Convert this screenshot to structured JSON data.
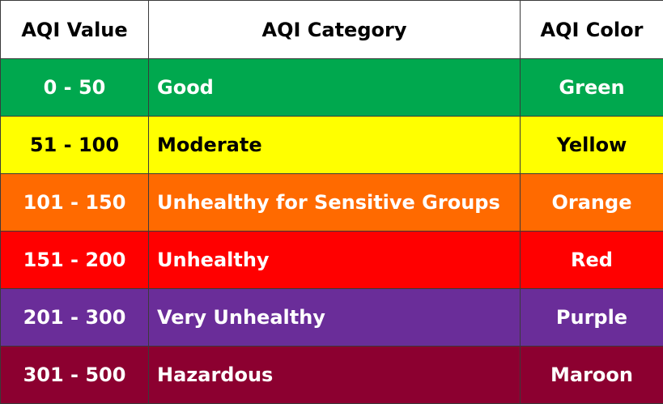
{
  "header": {
    "value": "AQI Value",
    "category": "AQI Category",
    "color": "AQI Color"
  },
  "rows": [
    {
      "value": "0 - 50",
      "category": "Good",
      "color": "Green",
      "bg": "#00a84e",
      "fg": "#ffffff"
    },
    {
      "value": "51 - 100",
      "category": "Moderate",
      "color": "Yellow",
      "bg": "#ffff00",
      "fg": "#000000"
    },
    {
      "value": "101 - 150",
      "category": "Unhealthy for Sensitive Groups",
      "color": "Orange",
      "bg": "#ff6a00",
      "fg": "#ffffff"
    },
    {
      "value": "151 - 200",
      "category": "Unhealthy",
      "color": "Red",
      "bg": "#ff0000",
      "fg": "#ffffff"
    },
    {
      "value": "201 - 300",
      "category": "Very Unhealthy",
      "color": "Purple",
      "bg": "#6a2d99",
      "fg": "#ffffff"
    },
    {
      "value": "301 - 500",
      "category": "Hazardous",
      "color": "Maroon",
      "bg": "#8c0030",
      "fg": "#ffffff"
    }
  ]
}
